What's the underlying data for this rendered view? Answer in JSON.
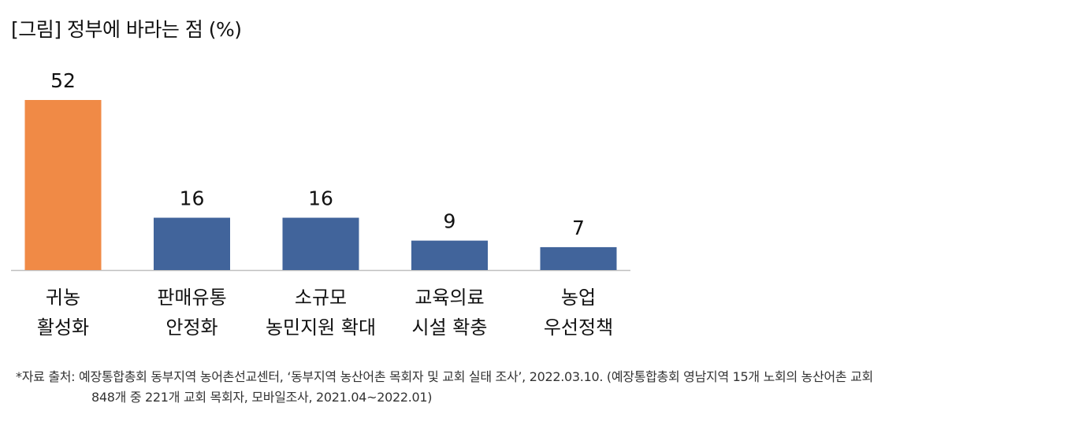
{
  "title": "[그림] 정부에 바라는 점 (%)",
  "chart_data": {
    "type": "bar",
    "title": "[그림] 정부에 바라는 점 (%)",
    "categories": [
      [
        "귀농",
        "활성화"
      ],
      [
        "판매유통",
        "안정화"
      ],
      [
        "소규모",
        "농민지원 확대"
      ],
      [
        "교육의료",
        "시설 확충"
      ],
      [
        "농업",
        "우선정책"
      ]
    ],
    "values": [
      52,
      16,
      16,
      9,
      7
    ],
    "value_labels": [
      "52",
      "16",
      "16",
      "9",
      "7"
    ],
    "bar_colors": [
      "#F08A46",
      "#41649B",
      "#41649B",
      "#41649B",
      "#41649B"
    ],
    "ylim": [
      0,
      52
    ],
    "grid": false,
    "legend": "none"
  },
  "footnote": {
    "line1": "*자료 출처: 예장통합총회 동부지역 농어촌선교센터, ‘동부지역 농산어촌 목회자 및 교회 실태 조사’, 2022.03.10. (예장통합총회 영남지역 15개 노회의 농산어촌 교회",
    "line2": "848개 중 221개 교회 목회자, 모바일조사, 2021.04~2022.01)"
  }
}
